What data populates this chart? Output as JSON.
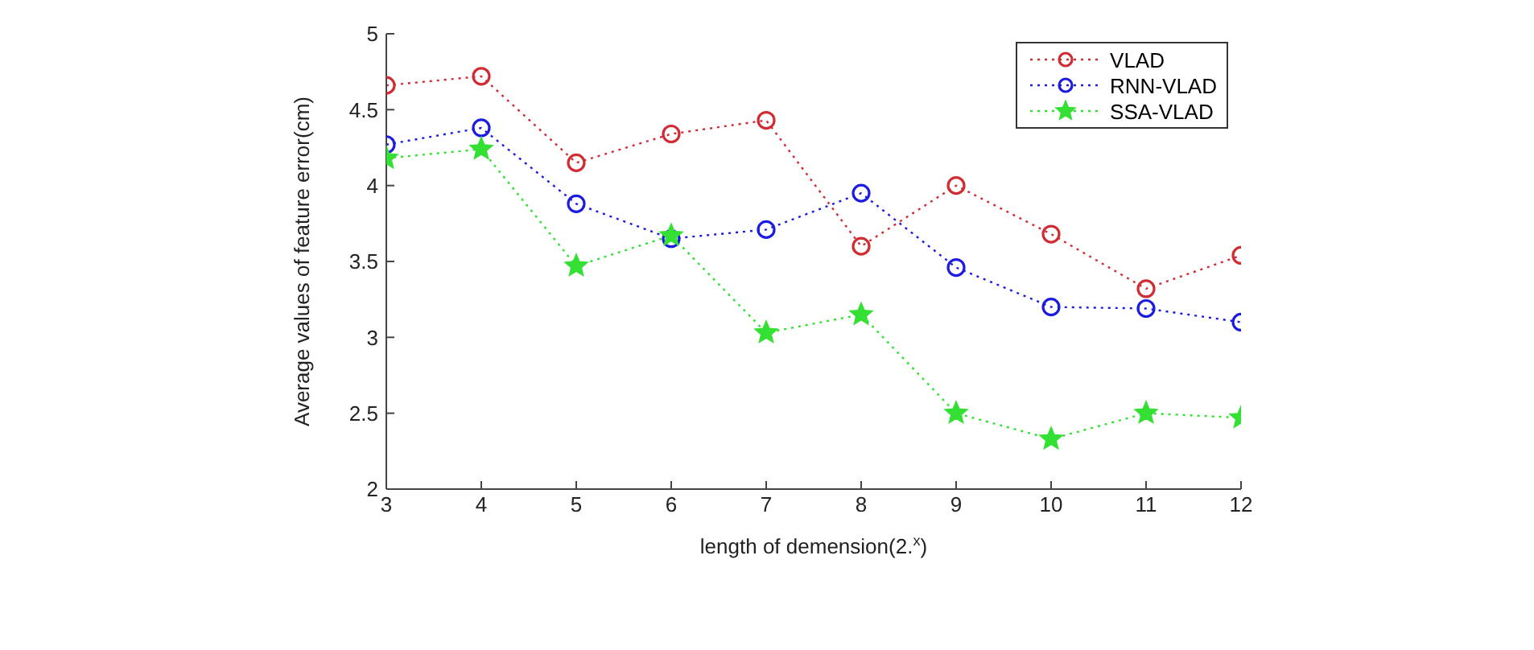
{
  "chart_data": {
    "type": "line",
    "xlabel": "length of demension(2.$^{x}$)",
    "ylabel": "Average values of feature error(cm)",
    "x": [
      3,
      4,
      5,
      6,
      7,
      8,
      9,
      10,
      11,
      12
    ],
    "series": [
      {
        "name": "VLAD",
        "color": "#d02c34",
        "marker": "circle",
        "values": [
          4.66,
          4.72,
          4.15,
          4.34,
          4.43,
          3.6,
          4.0,
          3.68,
          3.32,
          3.54
        ]
      },
      {
        "name": "RNN-VLAD",
        "color": "#1c1ce0",
        "marker": "circle",
        "values": [
          4.27,
          4.38,
          3.88,
          3.65,
          3.71,
          3.95,
          3.46,
          3.2,
          3.19,
          3.1
        ]
      },
      {
        "name": "SSA-VLAD",
        "color": "#33e033",
        "marker": "star",
        "values": [
          4.18,
          4.24,
          3.47,
          3.67,
          3.03,
          3.15,
          2.5,
          2.33,
          2.5,
          2.47
        ]
      }
    ],
    "xlim": [
      3,
      12
    ],
    "xticks": [
      3,
      4,
      5,
      6,
      7,
      8,
      9,
      10,
      11,
      12
    ],
    "ylim": [
      2,
      5
    ],
    "yticks": [
      2,
      2.5,
      3,
      3.5,
      4,
      4.5,
      5
    ],
    "line_style": "dotted",
    "legend": "top right",
    "grid": false
  }
}
